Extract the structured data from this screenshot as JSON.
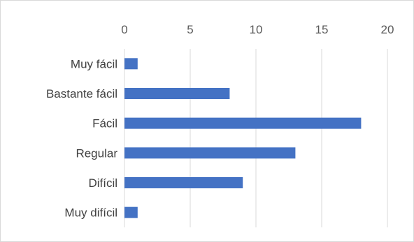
{
  "chart_data": {
    "type": "bar",
    "orientation": "horizontal",
    "categories": [
      "Muy fácil",
      "Bastante fácil",
      "Fácil",
      "Regular",
      "Difícil",
      "Muy difícil"
    ],
    "values": [
      1,
      8,
      18,
      13,
      9,
      1
    ],
    "xlim": [
      0,
      20
    ],
    "x_ticks": [
      "0",
      "5",
      "10",
      "15",
      "20"
    ],
    "x_axis_position": "top",
    "grid": true,
    "legend": "none",
    "title": "",
    "xlabel": "",
    "ylabel": "",
    "bar_color": "#4472C4",
    "grid_color": "#d9d9d9"
  }
}
